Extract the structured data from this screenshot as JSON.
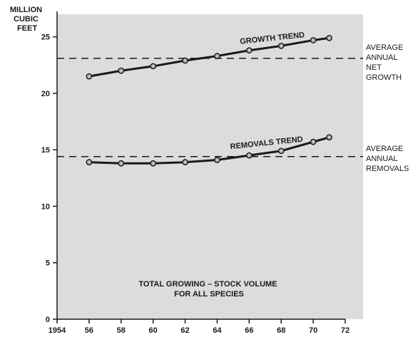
{
  "chart_data": {
    "type": "line",
    "ylabel_lines": [
      "MILLION",
      "CUBIC",
      "FEET"
    ],
    "x_ticks": [
      "1954",
      "56",
      "58",
      "60",
      "62",
      "64",
      "66",
      "68",
      "70",
      "72"
    ],
    "x_tick_values": [
      54,
      56,
      58,
      60,
      62,
      64,
      66,
      68,
      70,
      72
    ],
    "y_ticks": [
      "0",
      "5",
      "10",
      "15",
      "20",
      "25"
    ],
    "y_tick_values": [
      0,
      5,
      10,
      15,
      20,
      25
    ],
    "xlim": [
      54,
      72
    ],
    "ylim": [
      0,
      27
    ],
    "grid": false,
    "series": [
      {
        "name": "GROWTH TREND",
        "x": [
          56,
          58,
          60,
          62,
          64,
          66,
          68,
          70,
          71
        ],
        "values": [
          21.5,
          22.0,
          22.4,
          22.9,
          23.3,
          23.8,
          24.2,
          24.7,
          24.9
        ]
      },
      {
        "name": "REMOVALS TREND",
        "x": [
          56,
          58,
          60,
          62,
          64,
          66,
          68,
          70,
          71
        ],
        "values": [
          13.9,
          13.8,
          13.8,
          13.9,
          14.1,
          14.5,
          14.9,
          15.7,
          16.1
        ]
      }
    ],
    "reference_lines": [
      {
        "label_lines": [
          "AVERAGE",
          "ANNUAL",
          "NET",
          "GROWTH"
        ],
        "value": 23.1
      },
      {
        "label_lines": [
          "AVERAGE",
          "ANNUAL",
          "REMOVALS"
        ],
        "value": 14.4
      }
    ],
    "annotation_lines": [
      "TOTAL GROWING – STOCK VOLUME",
      "FOR ALL SPECIES"
    ],
    "colors": {
      "plot_background": "#dcdcdc",
      "line": "#1a1a1a",
      "marker_fill": "#bdbdbd"
    }
  }
}
